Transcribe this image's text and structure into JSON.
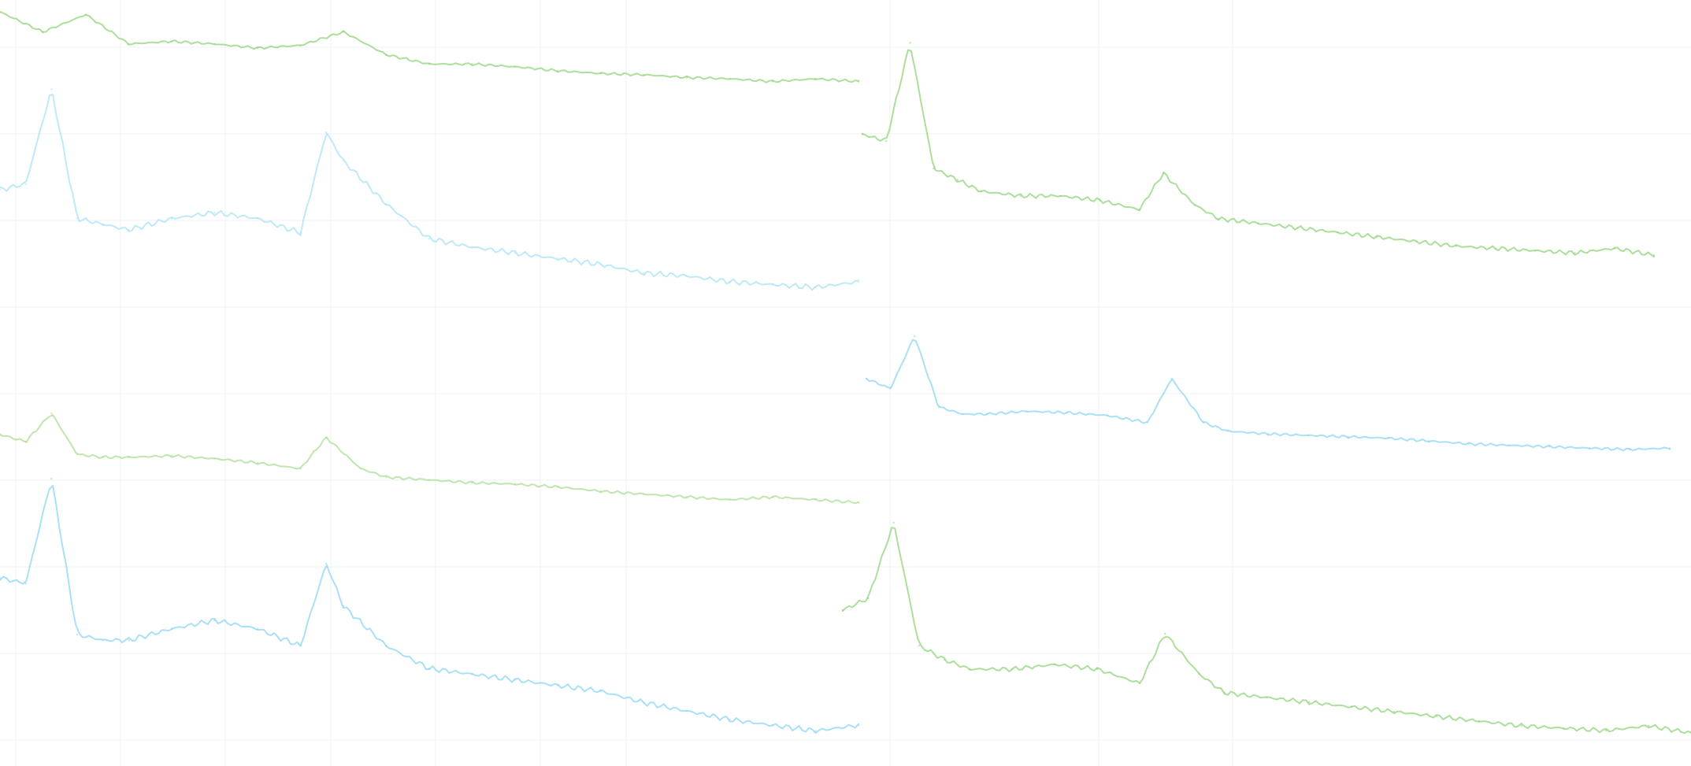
{
  "chart_data": {
    "type": "line",
    "title": "",
    "xlabel": "",
    "ylabel": "",
    "grid": true,
    "legend": "none",
    "panels": [
      {
        "panel": "top-left",
        "series_color": "#8fd47a",
        "x": [
          0,
          0.05,
          0.1,
          0.15,
          0.2,
          0.25,
          0.3,
          0.35,
          0.4,
          0.45,
          0.5,
          0.55,
          0.6,
          0.65,
          0.7,
          0.75,
          0.8,
          0.85,
          0.9,
          0.95,
          1.0
        ],
        "y": [
          0.97,
          0.82,
          0.95,
          0.73,
          0.75,
          0.73,
          0.7,
          0.72,
          0.82,
          0.65,
          0.58,
          0.58,
          0.56,
          0.53,
          0.51,
          0.5,
          0.48,
          0.47,
          0.45,
          0.47,
          0.45
        ]
      },
      {
        "panel": "top-left-lower",
        "series_color": "#a8e2f7",
        "x": [
          0,
          0.03,
          0.06,
          0.09,
          0.12,
          0.15,
          0.2,
          0.25,
          0.3,
          0.35,
          0.38,
          0.4,
          0.45,
          0.5,
          0.55,
          0.6,
          0.65,
          0.7,
          0.75,
          0.8,
          0.85,
          0.9,
          0.95,
          1.0
        ],
        "y": [
          0.6,
          0.62,
          0.95,
          0.5,
          0.48,
          0.46,
          0.5,
          0.52,
          0.5,
          0.45,
          0.8,
          0.7,
          0.55,
          0.43,
          0.4,
          0.38,
          0.36,
          0.34,
          0.31,
          0.3,
          0.28,
          0.27,
          0.26,
          0.28
        ]
      },
      {
        "panel": "top-right",
        "series_color": "#8fd47a",
        "x": [
          0,
          0.03,
          0.06,
          0.09,
          0.12,
          0.15,
          0.2,
          0.25,
          0.3,
          0.35,
          0.38,
          0.42,
          0.45,
          0.5,
          0.55,
          0.6,
          0.65,
          0.7,
          0.75,
          0.8,
          0.85,
          0.9,
          0.95,
          1.0
        ],
        "y": [
          0.55,
          0.52,
          0.95,
          0.4,
          0.35,
          0.3,
          0.28,
          0.28,
          0.26,
          0.22,
          0.38,
          0.24,
          0.18,
          0.16,
          0.14,
          0.12,
          0.1,
          0.08,
          0.06,
          0.05,
          0.04,
          0.03,
          0.05,
          0.02
        ]
      },
      {
        "panel": "middle-right",
        "series_color": "#8ed5f2",
        "x": [
          0,
          0.03,
          0.06,
          0.09,
          0.12,
          0.15,
          0.2,
          0.25,
          0.3,
          0.35,
          0.38,
          0.42,
          0.45,
          0.5,
          0.55,
          0.6,
          0.65,
          0.7,
          0.75,
          0.8,
          0.85,
          0.9,
          0.95,
          1.0
        ],
        "y": [
          0.55,
          0.48,
          0.85,
          0.35,
          0.3,
          0.3,
          0.32,
          0.31,
          0.29,
          0.24,
          0.55,
          0.24,
          0.18,
          0.16,
          0.15,
          0.14,
          0.13,
          0.11,
          0.09,
          0.08,
          0.07,
          0.06,
          0.05,
          0.06
        ]
      },
      {
        "panel": "bottom-left-upper",
        "series_color": "#a9dd93",
        "x": [
          0,
          0.03,
          0.06,
          0.09,
          0.12,
          0.15,
          0.2,
          0.25,
          0.3,
          0.35,
          0.38,
          0.42,
          0.45,
          0.5,
          0.55,
          0.6,
          0.65,
          0.7,
          0.75,
          0.8,
          0.85,
          0.9,
          0.95,
          1.0
        ],
        "y": [
          0.6,
          0.55,
          0.75,
          0.46,
          0.44,
          0.44,
          0.45,
          0.43,
          0.4,
          0.36,
          0.58,
          0.36,
          0.3,
          0.28,
          0.26,
          0.25,
          0.23,
          0.2,
          0.18,
          0.16,
          0.14,
          0.16,
          0.14,
          0.12
        ]
      },
      {
        "panel": "bottom-left",
        "series_color": "#8ed5f2",
        "x": [
          0,
          0.03,
          0.06,
          0.09,
          0.12,
          0.15,
          0.2,
          0.25,
          0.3,
          0.35,
          0.38,
          0.4,
          0.45,
          0.5,
          0.55,
          0.6,
          0.65,
          0.7,
          0.75,
          0.8,
          0.85,
          0.9,
          0.95,
          1.0
        ],
        "y": [
          0.6,
          0.58,
          0.95,
          0.4,
          0.38,
          0.38,
          0.42,
          0.45,
          0.42,
          0.36,
          0.65,
          0.5,
          0.36,
          0.28,
          0.26,
          0.24,
          0.22,
          0.2,
          0.16,
          0.13,
          0.1,
          0.08,
          0.06,
          0.08
        ]
      },
      {
        "panel": "bottom-right",
        "series_color": "#8fd47a",
        "x": [
          0,
          0.03,
          0.06,
          0.09,
          0.12,
          0.15,
          0.2,
          0.25,
          0.3,
          0.35,
          0.38,
          0.42,
          0.45,
          0.5,
          0.55,
          0.6,
          0.65,
          0.7,
          0.75,
          0.8,
          0.85,
          0.9,
          0.95,
          1.0
        ],
        "y": [
          0.55,
          0.6,
          0.92,
          0.4,
          0.34,
          0.3,
          0.3,
          0.32,
          0.3,
          0.24,
          0.45,
          0.28,
          0.2,
          0.18,
          0.16,
          0.14,
          0.12,
          0.1,
          0.08,
          0.06,
          0.05,
          0.04,
          0.06,
          0.03
        ]
      }
    ]
  }
}
